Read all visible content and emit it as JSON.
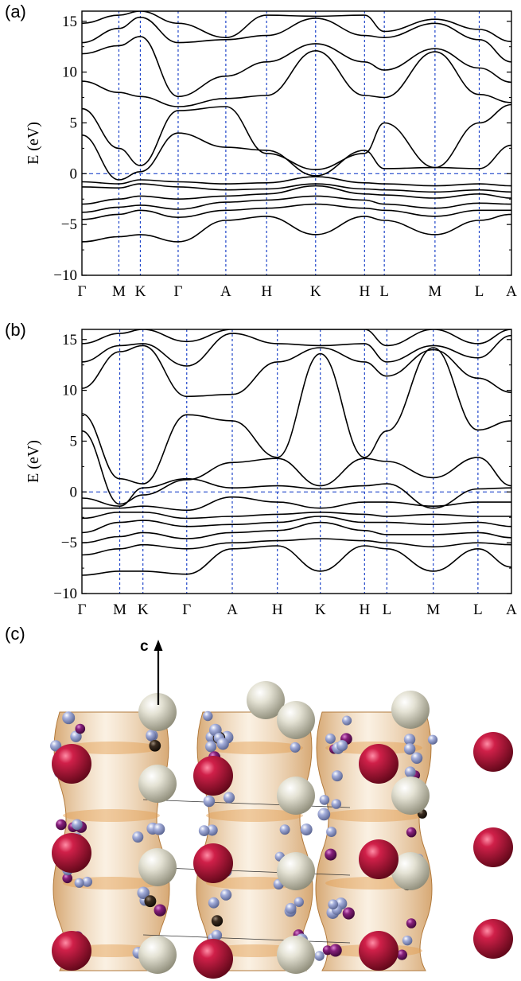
{
  "panels": [
    {
      "label": "(a)"
    },
    {
      "label": "(b)"
    },
    {
      "label": "(c)"
    }
  ],
  "structure": {
    "axis_label": "c"
  },
  "colors": {
    "band": "#000000",
    "symmetry_line": "#1f45c9",
    "cage": "#e7b980",
    "large_red_atom": "#b5123c",
    "large_cream_atom": "#e1dfcf",
    "small_blue_atom": "#9ca6cf",
    "small_purple_atom": "#7e1d73",
    "small_dark_atom": "#2d2118"
  },
  "chart_data": [
    {
      "type": "line",
      "title": "",
      "xlabel": "",
      "ylabel": "E (eV)",
      "ylim": [
        -10,
        16
      ],
      "yticks": [
        -10,
        -5,
        0,
        5,
        10,
        15
      ],
      "ytick_labels": [
        "−10",
        "−5",
        "0",
        "5",
        "10",
        "15"
      ],
      "grid": false,
      "fermi_level": 0,
      "kpath": [
        "Γ",
        "M",
        "K",
        "Γ",
        "A",
        "H",
        "K",
        "H",
        "L",
        "M",
        "L",
        "A"
      ],
      "kpos": [
        0,
        0.086,
        0.136,
        0.224,
        0.335,
        0.43,
        0.544,
        0.658,
        0.704,
        0.822,
        0.925,
        1.0
      ],
      "series": [
        {
          "values": [
            -6.7,
            -6.2,
            -6.0,
            -6.7,
            -4.6,
            -4.2,
            -6.0,
            -4.2,
            -4.6,
            -6.0,
            -4.6,
            -4.0
          ]
        },
        {
          "values": [
            -4.5,
            -4.0,
            -3.6,
            -4.3,
            -3.6,
            -3.4,
            -3.0,
            -3.4,
            -3.6,
            -4.2,
            -3.6,
            -3.6
          ]
        },
        {
          "values": [
            -3.8,
            -3.3,
            -3.1,
            -3.5,
            -2.8,
            -2.6,
            -2.2,
            -2.6,
            -3.0,
            -3.4,
            -2.9,
            -3.0
          ]
        },
        {
          "values": [
            -3.0,
            -2.5,
            -2.2,
            -2.5,
            -2.2,
            -2.0,
            -1.2,
            -2.0,
            -2.1,
            -2.4,
            -2.0,
            -2.4
          ]
        },
        {
          "values": [
            -1.3,
            -1.4,
            -1.0,
            -1.3,
            -1.6,
            -1.5,
            -1.0,
            -1.5,
            -1.6,
            -1.8,
            -1.6,
            -1.8
          ]
        },
        {
          "values": [
            -0.8,
            -1.0,
            -0.6,
            -0.8,
            -1.0,
            -0.9,
            -0.3,
            -0.9,
            -1.0,
            -1.2,
            -1.0,
            -1.2
          ]
        },
        {
          "values": [
            3.8,
            -0.6,
            0.2,
            4.0,
            2.6,
            2.3,
            -0.2,
            2.3,
            0.5,
            0.6,
            0.5,
            2.8
          ]
        },
        {
          "values": [
            6.4,
            2.5,
            0.8,
            6.2,
            6.6,
            2.0,
            0.4,
            2.0,
            5.0,
            0.6,
            5.0,
            6.8
          ]
        },
        {
          "values": [
            9.1,
            8.0,
            7.6,
            6.6,
            7.4,
            7.7,
            12.1,
            7.7,
            7.5,
            12.0,
            7.8,
            7.0
          ]
        },
        {
          "values": [
            11.8,
            12.6,
            13.5,
            7.6,
            9.6,
            11.0,
            12.8,
            11.0,
            10.2,
            12.3,
            10.4,
            9.0
          ]
        },
        {
          "values": [
            12.9,
            14.3,
            15.4,
            12.9,
            13.2,
            13.6,
            15.3,
            13.6,
            13.4,
            14.8,
            13.2,
            11.0
          ]
        },
        {
          "values": [
            14.8,
            15.6,
            16.0,
            14.8,
            13.4,
            15.6,
            15.5,
            15.6,
            14.0,
            15.2,
            14.2,
            13.0
          ]
        }
      ]
    },
    {
      "type": "line",
      "title": "",
      "xlabel": "",
      "ylabel": "E (eV)",
      "ylim": [
        -10,
        16
      ],
      "yticks": [
        -10,
        -5,
        0,
        5,
        10,
        15
      ],
      "ytick_labels": [
        "−10",
        "−5",
        "0",
        "5",
        "10",
        "15"
      ],
      "grid": false,
      "fermi_level": 0,
      "kpath": [
        "Γ",
        "M",
        "K",
        "Γ",
        "A",
        "H",
        "K",
        "H",
        "L",
        "M",
        "L",
        "A"
      ],
      "kpos": [
        0,
        0.088,
        0.142,
        0.244,
        0.35,
        0.455,
        0.555,
        0.658,
        0.71,
        0.818,
        0.922,
        1.0
      ],
      "series": [
        {
          "values": [
            -8.2,
            -7.8,
            -7.8,
            -8.1,
            -5.6,
            -5.3,
            -7.8,
            -5.3,
            -5.6,
            -7.8,
            -5.6,
            -7.4
          ]
        },
        {
          "values": [
            -6.2,
            -5.6,
            -5.2,
            -5.6,
            -5.0,
            -4.8,
            -4.6,
            -4.8,
            -5.0,
            -5.4,
            -5.0,
            -5.2
          ]
        },
        {
          "values": [
            -5.0,
            -4.4,
            -4.0,
            -4.6,
            -4.0,
            -3.8,
            -3.0,
            -3.8,
            -4.2,
            -4.2,
            -4.0,
            -4.5
          ]
        },
        {
          "values": [
            -4.0,
            -3.0,
            -2.8,
            -3.4,
            -3.2,
            -3.0,
            -2.4,
            -3.0,
            -3.0,
            -3.2,
            -3.0,
            -3.4
          ]
        },
        {
          "values": [
            -2.6,
            -2.0,
            -2.0,
            -2.6,
            -2.4,
            -2.2,
            -2.0,
            -2.2,
            -2.4,
            -2.2,
            -2.4,
            -2.4
          ]
        },
        {
          "values": [
            -1.6,
            -1.6,
            -1.4,
            -1.8,
            -0.5,
            -1.0,
            -1.6,
            -1.0,
            -1.0,
            -1.4,
            -1.0,
            -1.0
          ]
        },
        {
          "values": [
            -0.6,
            -1.4,
            0.4,
            1.3,
            0.4,
            0.6,
            0.3,
            0.6,
            0.8,
            -1.6,
            0.3,
            0.4
          ]
        },
        {
          "values": [
            6.0,
            -1.2,
            -0.3,
            1.2,
            2.9,
            3.3,
            0.6,
            3.3,
            3.0,
            1.4,
            3.4,
            0.6
          ]
        },
        {
          "values": [
            7.7,
            1.3,
            0.8,
            7.6,
            7.0,
            3.4,
            13.6,
            3.4,
            6.0,
            14.2,
            6.1,
            7.0
          ]
        },
        {
          "values": [
            10.2,
            13.8,
            14.4,
            9.4,
            9.6,
            12.8,
            14.2,
            12.8,
            11.4,
            14.0,
            11.2,
            9.8
          ]
        },
        {
          "values": [
            12.8,
            14.4,
            14.6,
            12.4,
            15.6,
            14.6,
            14.4,
            14.6,
            12.8,
            14.4,
            13.2,
            15.4
          ]
        },
        {
          "values": [
            14.6,
            15.6,
            16.0,
            14.8,
            16.0,
            16.0,
            16.0,
            16.0,
            14.4,
            16.0,
            14.6,
            16.0
          ]
        }
      ]
    }
  ]
}
